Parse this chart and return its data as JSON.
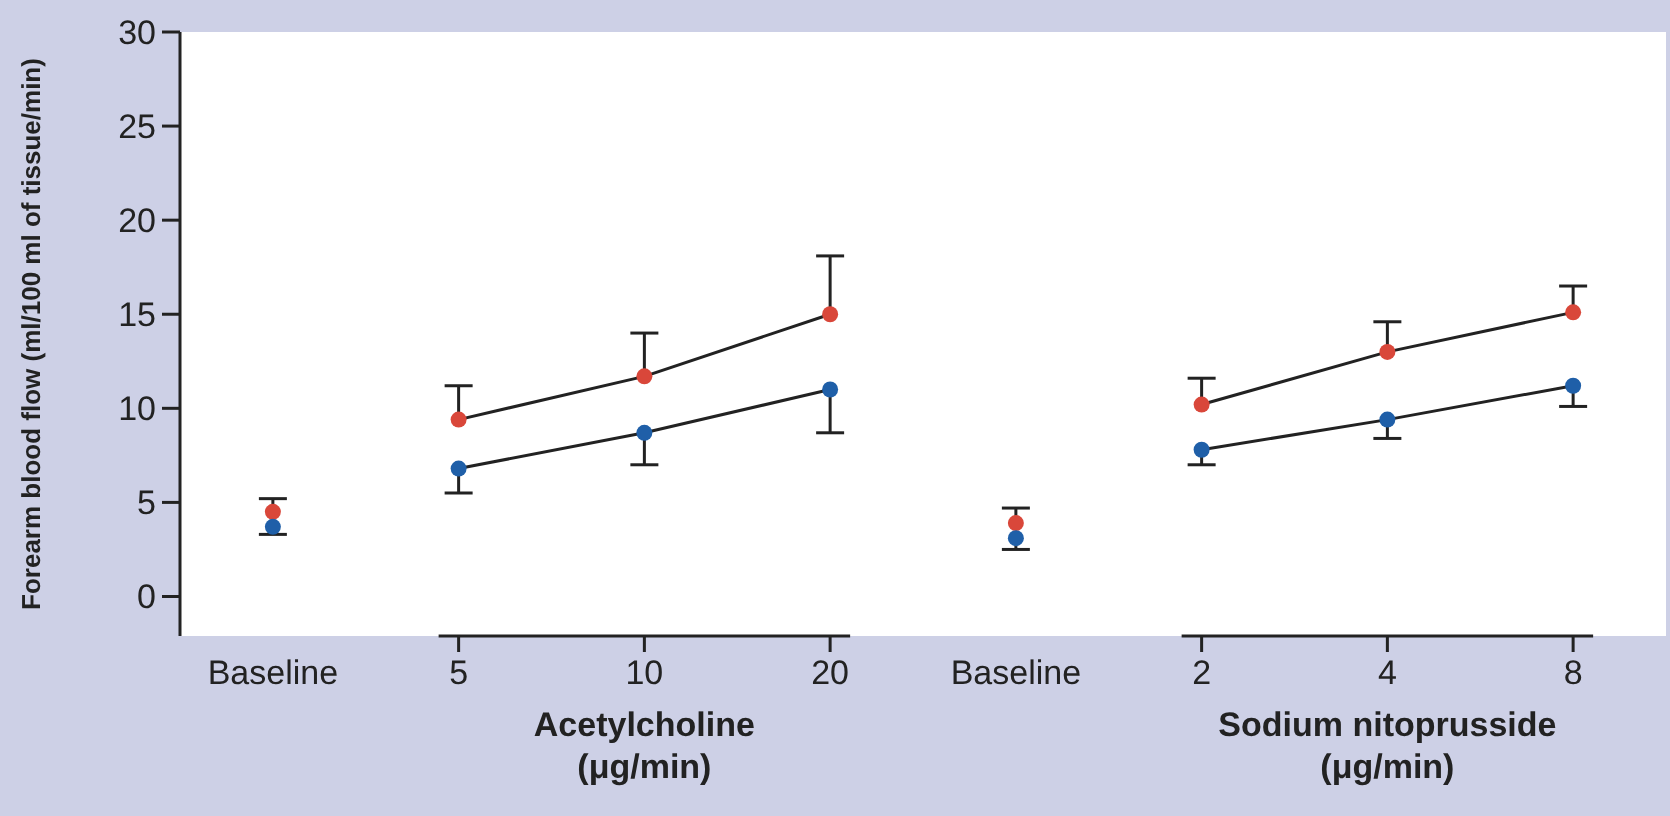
{
  "chart_data": {
    "type": "line",
    "ylabel": "Forearm blood flow (ml/100 ml of tissue/min)",
    "categories": [
      "Baseline",
      "5",
      "10",
      "20",
      "Baseline",
      "2",
      "4",
      "8"
    ],
    "ylim": [
      -2.1,
      30
    ],
    "yticks": [
      0,
      5,
      10,
      15,
      20,
      25,
      30
    ],
    "grid": false,
    "marker": "circle",
    "series": [
      {
        "type": "scatter",
        "color": "#d9473a",
        "values": [
          4.5,
          null,
          null,
          null,
          3.9,
          null,
          null,
          null
        ],
        "errors": [
          [
            4.5,
            5.2
          ],
          null,
          null,
          null,
          [
            3.9,
            4.7
          ],
          null,
          null,
          null
        ]
      },
      {
        "type": "scatter",
        "color": "#1f5fa8",
        "values": [
          3.7,
          null,
          null,
          null,
          3.1,
          null,
          null,
          null
        ],
        "errors": [
          [
            3.3,
            3.7
          ],
          null,
          null,
          null,
          [
            2.5,
            3.1
          ],
          null,
          null,
          null
        ]
      },
      {
        "color": "#d9473a",
        "values": [
          null,
          9.4,
          11.7,
          15.0,
          null,
          10.2,
          13.0,
          15.1
        ],
        "errors": [
          null,
          [
            9.4,
            11.2
          ],
          [
            11.7,
            14.0
          ],
          [
            15.0,
            18.1
          ],
          null,
          [
            10.2,
            11.6
          ],
          [
            13.0,
            14.6
          ],
          [
            15.1,
            16.5
          ]
        ]
      },
      {
        "color": "#1f5fa8",
        "values": [
          null,
          6.8,
          8.7,
          11.0,
          null,
          7.8,
          9.4,
          11.2
        ],
        "errors": [
          null,
          [
            5.5,
            6.8
          ],
          [
            7.0,
            8.7
          ],
          [
            8.7,
            11.0
          ],
          null,
          [
            7.0,
            7.8
          ],
          [
            8.4,
            9.4
          ],
          [
            10.1,
            11.2
          ]
        ]
      }
    ],
    "annotations": [
      "Acetylcholine\n(μg/min)",
      "Sodium nitoprusside\n(μg/min)"
    ]
  }
}
